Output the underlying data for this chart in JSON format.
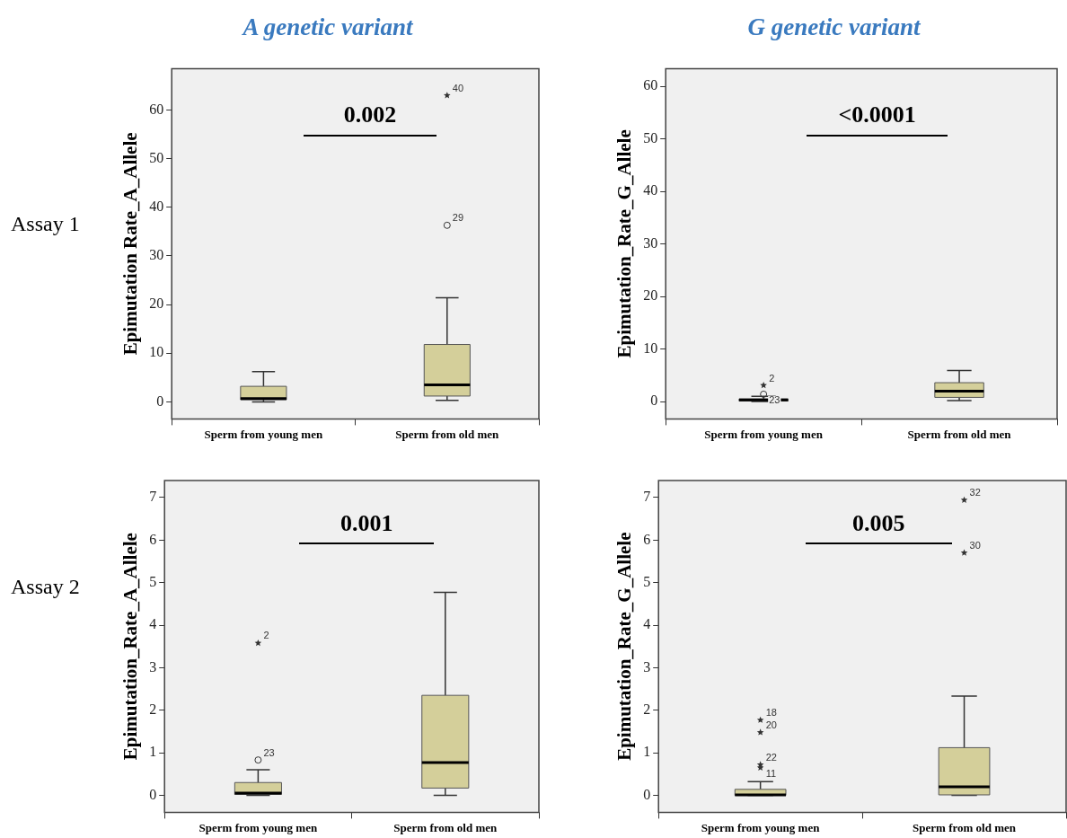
{
  "chart_data": [
    {
      "type": "box",
      "title": "A genetic variant",
      "ylabel": "Epimutation Rate_A_Allele",
      "categories": [
        "Sperm from young men",
        "Sperm from old men"
      ],
      "color": "#d4cf9a",
      "ylim": [
        -3.5,
        68.5
      ],
      "yticks": [
        0,
        10,
        20,
        30,
        40,
        50,
        60
      ],
      "boxes": [
        {
          "low": 0,
          "q1": 0.45,
          "median": 0.7,
          "q3": 3.2,
          "high": 6.2
        },
        {
          "low": 0.3,
          "q1": 1.2,
          "median": 3.5,
          "q3": 11.8,
          "high": 21.4,
          "outliers": [
            36.3,
            63.0
          ]
        }
      ],
      "annotations": [
        "Assay 1",
        "0.002",
        "29",
        "40"
      ]
    },
    {
      "type": "box",
      "title": "G genetic variant",
      "ylabel": "Epimutation_Rate_G_Allele",
      "categories": [
        "Sperm from young men",
        "Sperm from old men"
      ],
      "color": "#d4cf9a",
      "ylim": [
        -3.3,
        63.4
      ],
      "yticks": [
        0,
        10,
        20,
        30,
        40,
        50,
        60
      ],
      "boxes": [
        {
          "low": 0,
          "q1": 0.1,
          "median": 0.3,
          "q3": 0.5,
          "high": 1.0,
          "outliers": [
            1.4,
            3.1
          ]
        },
        {
          "low": 0.2,
          "q1": 0.8,
          "median": 2.0,
          "q3": 3.6,
          "high": 5.9
        }
      ],
      "annotations": [
        "<0.0001",
        "23",
        "2"
      ]
    },
    {
      "type": "box",
      "ylabel": "Epimutation_Rate_A_Allele",
      "categories": [
        "Sperm from young men",
        "Sperm from old men"
      ],
      "color": "#d4cf9a",
      "ylim": [
        -0.4,
        7.4
      ],
      "yticks": [
        0,
        1,
        2,
        3,
        4,
        5,
        6,
        7
      ],
      "boxes": [
        {
          "low": 0,
          "q1": 0.02,
          "median": 0.05,
          "q3": 0.3,
          "high": 0.6,
          "outliers": [
            0.83,
            3.58
          ]
        },
        {
          "low": 0,
          "q1": 0.17,
          "median": 0.77,
          "q3": 2.35,
          "high": 4.77
        }
      ],
      "annotations": [
        "Assay 2",
        "0.001",
        "23",
        "2"
      ]
    },
    {
      "type": "box",
      "ylabel": "Epimutation_Rate_G_Allele",
      "categories": [
        "Sperm from young men",
        "Sperm from old men"
      ],
      "color": "#d4cf9a",
      "ylim": [
        -0.4,
        7.4
      ],
      "yticks": [
        0,
        1,
        2,
        3,
        4,
        5,
        6,
        7
      ],
      "boxes": [
        {
          "low": 0,
          "q1": 0,
          "median": 0.01,
          "q3": 0.14,
          "high": 0.32,
          "outliers": [
            0.65,
            0.72,
            1.48,
            1.77
          ]
        },
        {
          "low": 0,
          "q1": 0.01,
          "median": 0.2,
          "q3": 1.12,
          "high": 2.33,
          "outliers": [
            5.7,
            6.94
          ]
        }
      ],
      "annotations": [
        "0.005",
        "11",
        "22",
        "20",
        "18",
        "30",
        "32"
      ]
    }
  ]
}
